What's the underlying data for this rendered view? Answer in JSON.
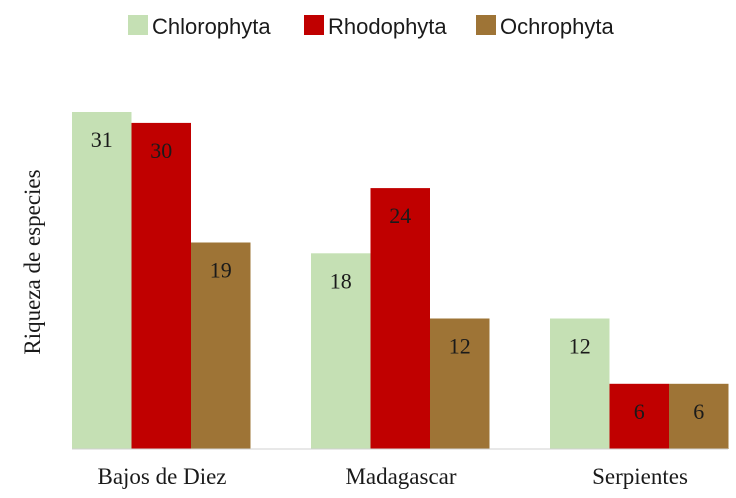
{
  "chart_data": {
    "type": "bar",
    "categories": [
      "Bajos de Diez",
      "Madagascar",
      "Serpientes"
    ],
    "series": [
      {
        "name": "Chlorophyta",
        "values": [
          31,
          18,
          12
        ],
        "color": "#c5e0b4"
      },
      {
        "name": "Rhodophyta",
        "values": [
          30,
          24,
          6
        ],
        "color": "#c00000"
      },
      {
        "name": "Ochrophyta",
        "values": [
          19,
          12,
          6
        ],
        "color": "#9e7436"
      }
    ],
    "ylabel": "Riqueza de especies",
    "ylim": [
      0,
      31
    ],
    "grid": false,
    "legend_position": "top"
  }
}
